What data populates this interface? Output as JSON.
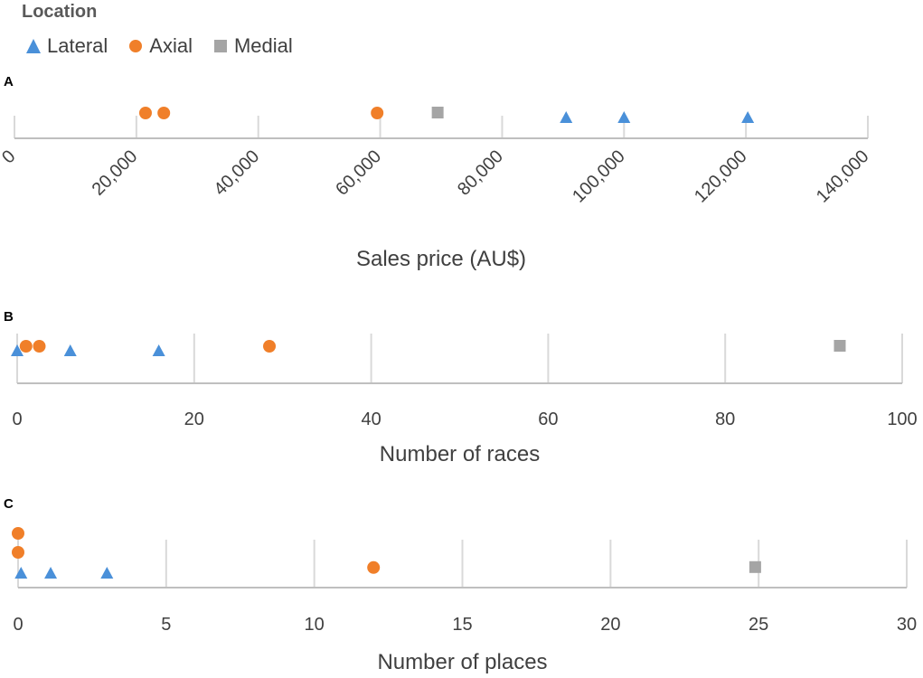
{
  "legend": {
    "title": "Location",
    "entries": [
      {
        "name": "Lateral",
        "color": "#4a90d9",
        "marker": "triangle"
      },
      {
        "name": "Axial",
        "color": "#f07f29",
        "marker": "circle"
      },
      {
        "name": "Medial",
        "color": "#a5a5a5",
        "marker": "square"
      }
    ]
  },
  "chart_data": [
    {
      "type": "scatter",
      "panel_label": "A",
      "xlabel": "Sales price (AU$)",
      "xlim": [
        0,
        140000
      ],
      "tick_step": 20000,
      "tick_labels": [
        "0",
        "20,000",
        "40,000",
        "60,000",
        "80,000",
        "100,000",
        "120,000",
        "140,000"
      ],
      "grid": true,
      "series": [
        {
          "name": "Lateral",
          "points": [
            {
              "x": 90500,
              "stack": 0
            },
            {
              "x": 100000,
              "stack": 0
            },
            {
              "x": 120300,
              "stack": 0
            }
          ]
        },
        {
          "name": "Axial",
          "points": [
            {
              "x": 21500,
              "stack": 1
            },
            {
              "x": 24500,
              "stack": 1
            },
            {
              "x": 59500,
              "stack": 1
            }
          ]
        },
        {
          "name": "Medial",
          "points": [
            {
              "x": 69500,
              "stack": 1
            }
          ]
        }
      ]
    },
    {
      "type": "scatter",
      "panel_label": "B",
      "xlabel": "Number of races",
      "xlim": [
        0,
        100
      ],
      "tick_step": 20,
      "tick_labels": [
        "0",
        "20",
        "40",
        "60",
        "80",
        "100"
      ],
      "grid": true,
      "series": [
        {
          "name": "Lateral",
          "points": [
            {
              "x": 0,
              "stack": 0
            },
            {
              "x": 6,
              "stack": 0
            },
            {
              "x": 16,
              "stack": 0
            }
          ]
        },
        {
          "name": "Axial",
          "points": [
            {
              "x": 1,
              "stack": 1
            },
            {
              "x": 2.5,
              "stack": 1
            },
            {
              "x": 28.5,
              "stack": 1
            }
          ]
        },
        {
          "name": "Medial",
          "points": [
            {
              "x": 93,
              "stack": 1
            }
          ]
        }
      ]
    },
    {
      "type": "scatter",
      "panel_label": "C",
      "xlabel": "Number of places",
      "xlim": [
        0,
        30
      ],
      "tick_step": 5,
      "tick_labels": [
        "0",
        "5",
        "10",
        "15",
        "20",
        "25",
        "30"
      ],
      "grid": true,
      "series": [
        {
          "name": "Lateral",
          "points": [
            {
              "x": 0.1,
              "stack": 0
            },
            {
              "x": 1.1,
              "stack": 0
            },
            {
              "x": 3.0,
              "stack": 0
            }
          ]
        },
        {
          "name": "Axial",
          "points": [
            {
              "x": 0,
              "stack": 1
            },
            {
              "x": 0,
              "stack": 2
            },
            {
              "x": 12,
              "stack": 0.2
            }
          ]
        },
        {
          "name": "Medial",
          "points": [
            {
              "x": 24.9,
              "stack": 0.2
            }
          ]
        }
      ]
    }
  ]
}
